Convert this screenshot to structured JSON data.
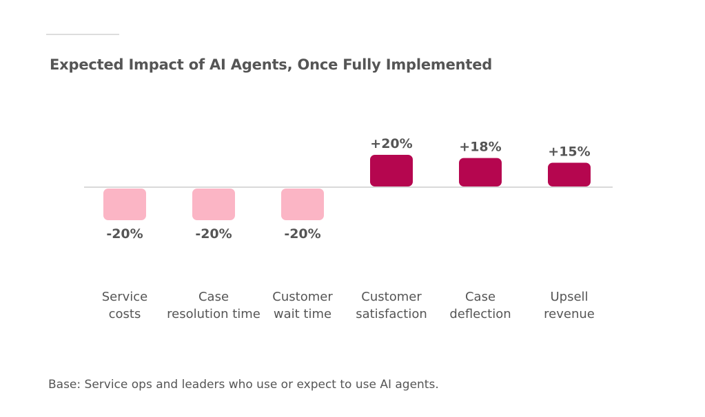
{
  "chart_data": {
    "type": "bar",
    "title": "Expected Impact of AI Agents, Once Fully Implemented",
    "categories": [
      [
        "Service",
        "costs"
      ],
      [
        "Case",
        "resolution time"
      ],
      [
        "Customer",
        "wait time"
      ],
      [
        "Customer",
        "satisfaction"
      ],
      [
        "Case",
        "deflection"
      ],
      [
        "Upsell",
        "revenue"
      ]
    ],
    "values": [
      -20,
      -20,
      -20,
      20,
      18,
      15
    ],
    "labels": [
      "-20%",
      "-20%",
      "-20%",
      "+20%",
      "+18%",
      "+15%"
    ],
    "ylim": [
      -20,
      20
    ],
    "xlabel": "",
    "ylabel": "",
    "grid": false,
    "colors": {
      "negative": "#fbb5c5",
      "positive": "#b5064f",
      "axis": "#d9d9d9",
      "text": "#555555"
    }
  },
  "footnote": "Base: Service ops and leaders who use or expect to use AI agents."
}
